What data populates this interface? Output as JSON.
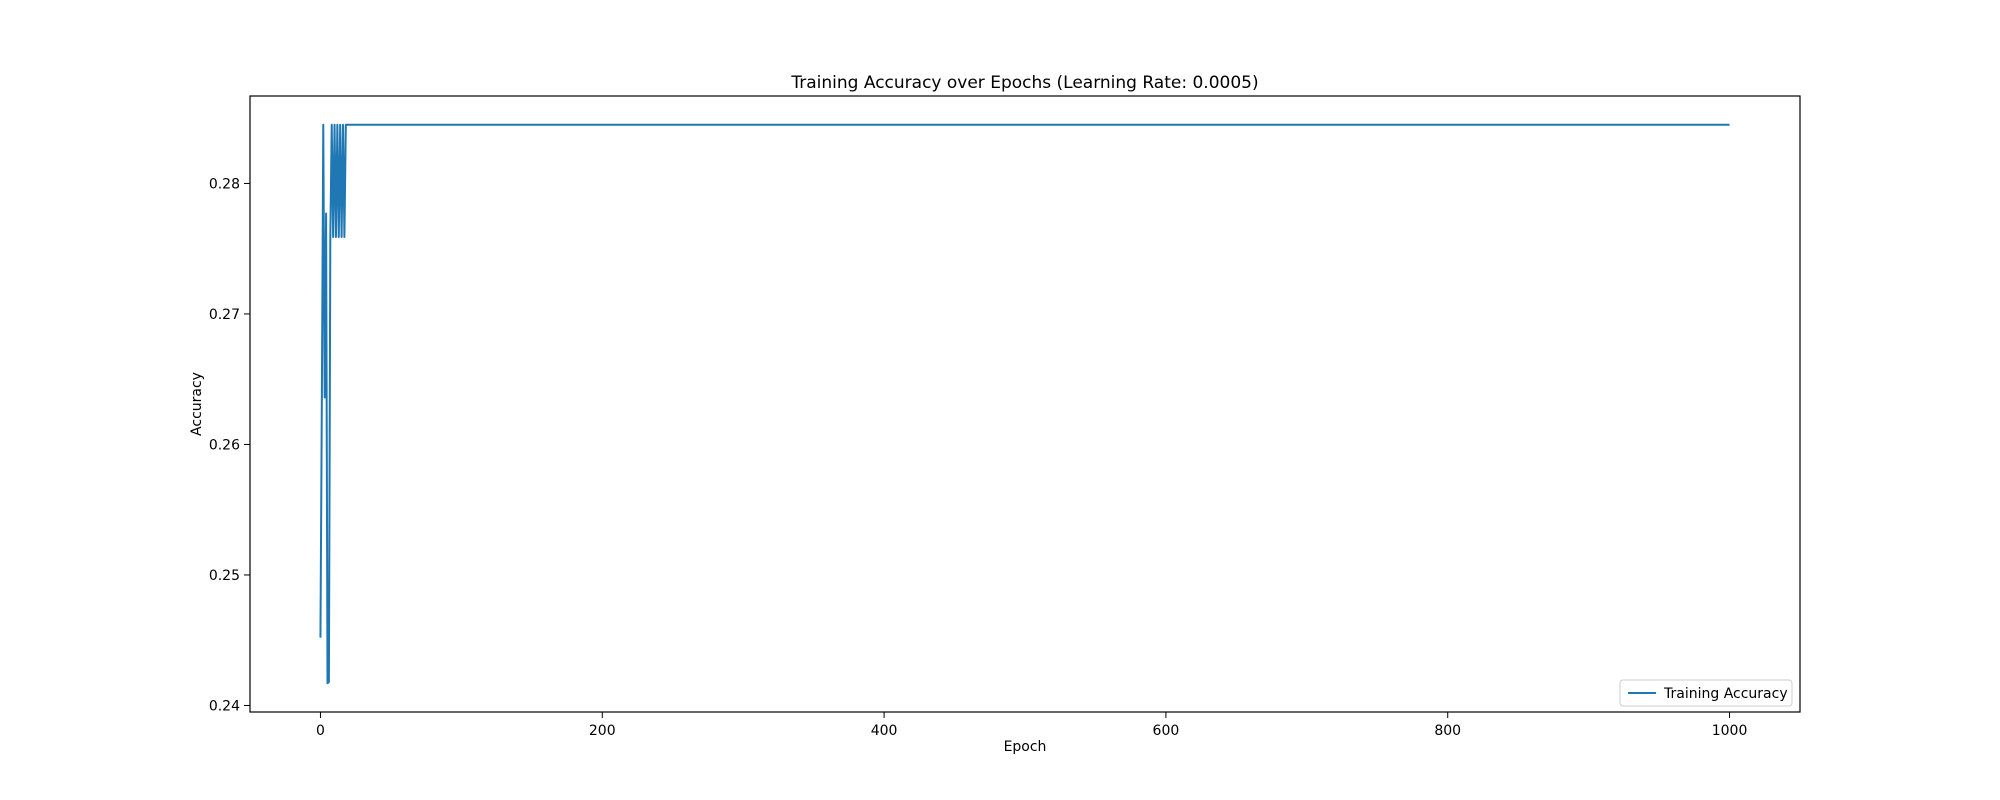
{
  "chart_data": {
    "type": "line",
    "title": "Training Accuracy over Epochs (Learning Rate: 0.0005)",
    "xlabel": "Epoch",
    "ylabel": "Accuracy",
    "xlim": [
      -50,
      1050
    ],
    "ylim": [
      0.2395,
      0.2867
    ],
    "xticks": [
      0,
      200,
      400,
      600,
      800,
      1000
    ],
    "yticks": [
      0.24,
      0.25,
      0.26,
      0.27,
      0.28
    ],
    "ytick_labels": [
      "0.24",
      "0.25",
      "0.26",
      "0.27",
      "0.28"
    ],
    "grid": false,
    "legend_position": "lower right",
    "series": [
      {
        "name": "Training Accuracy",
        "color": "#1f77b4",
        "x": [
          0,
          1,
          2,
          3,
          4,
          5,
          6,
          7,
          8,
          9,
          10,
          11,
          12,
          13,
          14,
          15,
          16,
          17,
          18,
          19,
          1000
        ],
        "y": [
          0.2452,
          0.2636,
          0.2845,
          0.2636,
          0.2777,
          0.2417,
          0.2418,
          0.2759,
          0.2845,
          0.2759,
          0.2845,
          0.2759,
          0.2845,
          0.2759,
          0.2845,
          0.2759,
          0.2845,
          0.2759,
          0.2845,
          0.2845,
          0.2845
        ]
      }
    ]
  }
}
